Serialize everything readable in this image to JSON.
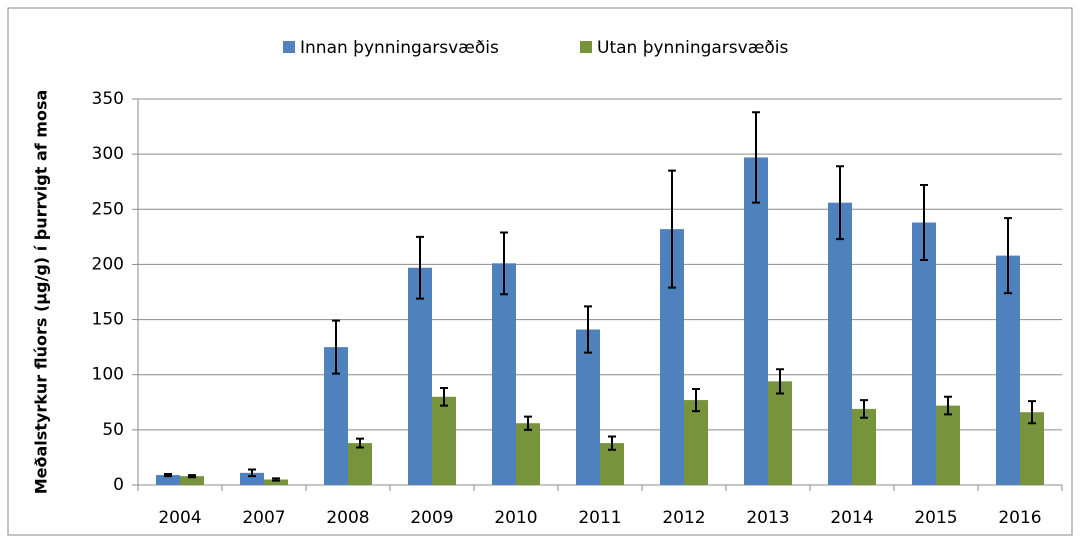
{
  "chart_data": {
    "type": "bar",
    "y_label": "Meðalstyrkur flúors (µg/g) í þurrvigt af mosa",
    "categories": [
      "2004",
      "2007",
      "2008",
      "2009",
      "2010",
      "2011",
      "2012",
      "2013",
      "2014",
      "2015",
      "2016"
    ],
    "series": [
      {
        "name": "Innan þynningarsvæðis",
        "color": "#4f81bd",
        "values": [
          9,
          11,
          125,
          197,
          201,
          141,
          232,
          297,
          256,
          238,
          208
        ],
        "errors": [
          1,
          3,
          24,
          28,
          28,
          21,
          53,
          41,
          33,
          34,
          34
        ]
      },
      {
        "name": "Utan þynningarsvæðis",
        "color": "#77933c",
        "values": [
          8,
          5,
          38,
          80,
          56,
          38,
          77,
          94,
          69,
          72,
          66
        ],
        "errors": [
          1,
          1,
          4,
          8,
          6,
          6,
          10,
          11,
          8,
          8,
          10
        ]
      }
    ],
    "ylim": [
      0,
      350
    ],
    "yticks": [
      0,
      50,
      100,
      150,
      200,
      250,
      300,
      350
    ],
    "grid": true,
    "legend": "top"
  }
}
